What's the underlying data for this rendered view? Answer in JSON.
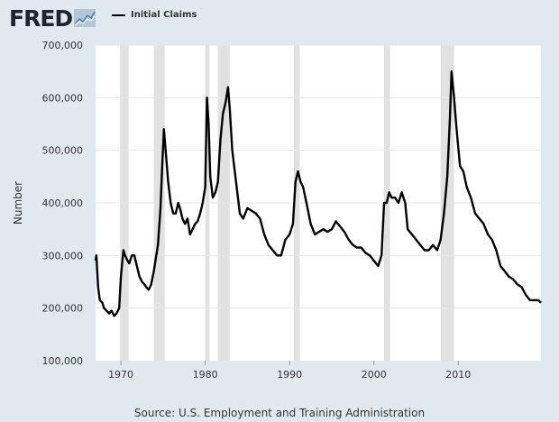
{
  "brand": {
    "logo_text": "FRED",
    "logo_icon": "fred-chart-icon"
  },
  "legend": {
    "label": "Initial Claims",
    "color": "#000000"
  },
  "source_text": "Source: U.S. Employment and Training Administration",
  "colors": {
    "background": "#e1e9f0",
    "plot": "#ffffff",
    "recession": "#e1e1e1",
    "grid": "#e6e6e6",
    "line": "#000000"
  },
  "chart_data": {
    "type": "line",
    "ylabel": "Number",
    "xlabel": "",
    "xlim": [
      1967.0,
      2019.8
    ],
    "ylim": [
      100000,
      700000
    ],
    "x_ticks": [
      1970,
      1980,
      1990,
      2000,
      2010
    ],
    "x_tick_labels": [
      "1970",
      "1980",
      "1990",
      "2000",
      "2010"
    ],
    "y_ticks": [
      100000,
      200000,
      300000,
      400000,
      500000,
      600000,
      700000
    ],
    "y_tick_labels": [
      "100,000",
      "200,000",
      "300,000",
      "400,000",
      "500,000",
      "600,000",
      "700,000"
    ],
    "grid": true,
    "legend_position": "top-left",
    "recessions": [
      [
        1969.9,
        1970.9
      ],
      [
        1973.9,
        1975.2
      ],
      [
        1980.0,
        1980.5
      ],
      [
        1981.5,
        1982.9
      ],
      [
        1990.5,
        1991.2
      ],
      [
        2001.2,
        2001.9
      ],
      [
        2007.9,
        2009.5
      ]
    ],
    "series": [
      {
        "name": "Initial Claims",
        "x": [
          1967.0,
          1967.1,
          1967.3,
          1967.5,
          1967.8,
          1968.0,
          1968.3,
          1968.6,
          1968.9,
          1969.2,
          1969.5,
          1969.8,
          1970.0,
          1970.3,
          1970.5,
          1970.8,
          1971.0,
          1971.3,
          1971.6,
          1971.9,
          1972.2,
          1972.5,
          1972.8,
          1973.0,
          1973.3,
          1973.6,
          1973.9,
          1974.1,
          1974.4,
          1974.7,
          1974.9,
          1975.1,
          1975.3,
          1975.6,
          1975.9,
          1976.2,
          1976.5,
          1976.8,
          1977.0,
          1977.3,
          1977.6,
          1977.9,
          1978.2,
          1978.5,
          1978.8,
          1979.1,
          1979.4,
          1979.7,
          1980.0,
          1980.2,
          1980.4,
          1980.6,
          1980.9,
          1981.2,
          1981.5,
          1981.8,
          1982.1,
          1982.4,
          1982.7,
          1982.9,
          1983.2,
          1983.5,
          1983.8,
          1984.1,
          1984.5,
          1985.0,
          1985.5,
          1986.0,
          1986.5,
          1987.0,
          1987.5,
          1988.0,
          1988.5,
          1989.0,
          1989.5,
          1990.0,
          1990.4,
          1990.7,
          1991.0,
          1991.3,
          1991.6,
          1992.0,
          1992.5,
          1993.0,
          1993.5,
          1994.0,
          1994.5,
          1995.0,
          1995.5,
          1996.0,
          1996.5,
          1997.0,
          1997.5,
          1998.0,
          1998.5,
          1999.0,
          1999.5,
          2000.0,
          2000.5,
          2000.9,
          2001.2,
          2001.5,
          2001.8,
          2002.1,
          2002.5,
          2002.9,
          2003.3,
          2003.7,
          2004.0,
          2004.5,
          2005.0,
          2005.5,
          2006.0,
          2006.5,
          2007.0,
          2007.5,
          2007.9,
          2008.3,
          2008.7,
          2009.0,
          2009.2,
          2009.5,
          2009.8,
          2010.2,
          2010.6,
          2011.0,
          2011.5,
          2012.0,
          2012.5,
          2013.0,
          2013.5,
          2014.0,
          2014.5,
          2015.0,
          2015.5,
          2016.0,
          2016.5,
          2017.0,
          2017.5,
          2018.0,
          2018.5,
          2019.0,
          2019.5,
          2019.8
        ],
        "y": [
          290000,
          300000,
          240000,
          215000,
          210000,
          200000,
          195000,
          190000,
          195000,
          185000,
          190000,
          200000,
          260000,
          310000,
          300000,
          290000,
          285000,
          300000,
          300000,
          280000,
          260000,
          250000,
          245000,
          240000,
          235000,
          245000,
          270000,
          290000,
          320000,
          390000,
          470000,
          540000,
          500000,
          440000,
          400000,
          380000,
          380000,
          400000,
          390000,
          370000,
          360000,
          370000,
          340000,
          350000,
          360000,
          365000,
          380000,
          400000,
          430000,
          600000,
          550000,
          450000,
          410000,
          420000,
          440000,
          520000,
          570000,
          590000,
          620000,
          580000,
          500000,
          460000,
          420000,
          380000,
          370000,
          390000,
          385000,
          380000,
          370000,
          340000,
          320000,
          310000,
          300000,
          300000,
          330000,
          340000,
          360000,
          440000,
          460000,
          440000,
          430000,
          400000,
          360000,
          340000,
          345000,
          350000,
          345000,
          350000,
          365000,
          355000,
          345000,
          330000,
          320000,
          315000,
          315000,
          305000,
          300000,
          290000,
          280000,
          300000,
          400000,
          400000,
          420000,
          410000,
          410000,
          400000,
          420000,
          400000,
          350000,
          340000,
          330000,
          320000,
          310000,
          310000,
          320000,
          310000,
          330000,
          380000,
          450000,
          560000,
          650000,
          600000,
          540000,
          470000,
          460000,
          430000,
          410000,
          380000,
          370000,
          360000,
          340000,
          330000,
          310000,
          280000,
          270000,
          260000,
          255000,
          245000,
          240000,
          225000,
          215000,
          215000,
          215000,
          210000
        ]
      }
    ]
  }
}
